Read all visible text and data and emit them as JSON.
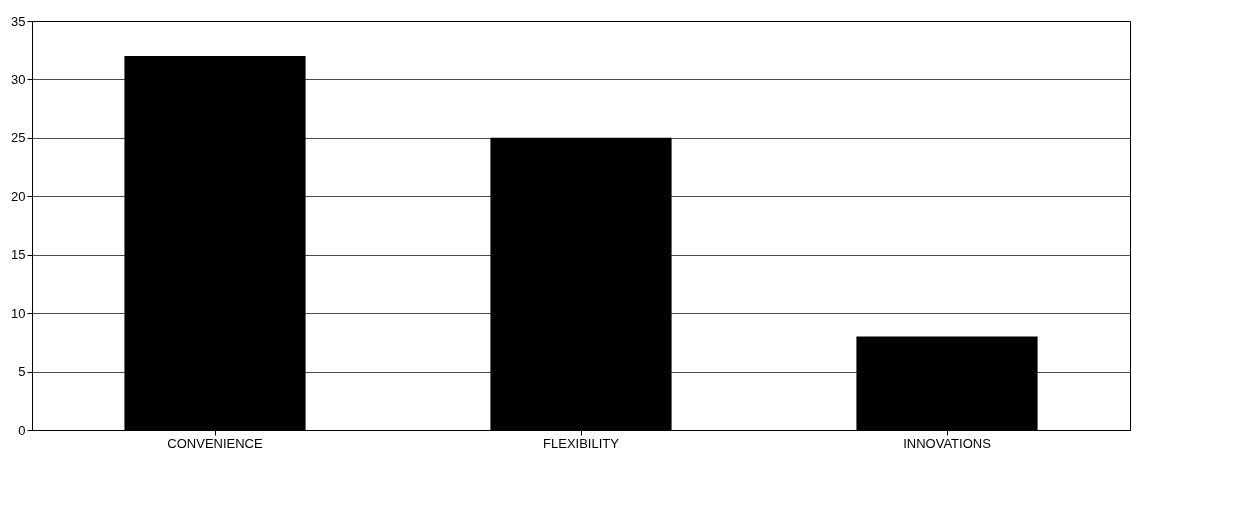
{
  "chart_data": {
    "type": "bar",
    "categories": [
      "CONVENIENCE",
      "FLEXIBILITY",
      "INNOVATIONS"
    ],
    "values": [
      32,
      25,
      8
    ],
    "color": "#000000",
    "ylim": [
      0,
      35
    ],
    "yticks": [
      0,
      5,
      10,
      15,
      20,
      25,
      30,
      35
    ],
    "grid": "y"
  }
}
